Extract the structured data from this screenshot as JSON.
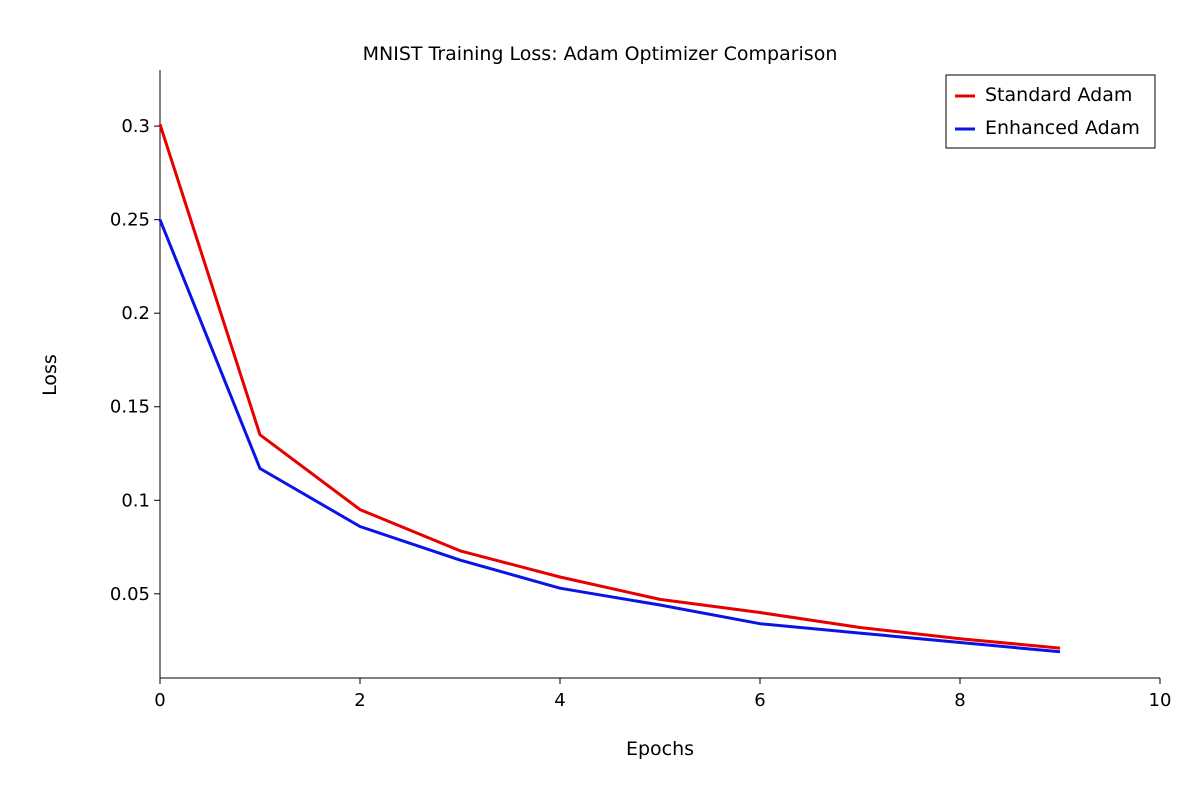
{
  "chart_data": {
    "type": "line",
    "title": "MNIST Training Loss: Adam Optimizer Comparison",
    "xlabel": "Epochs",
    "ylabel": "Loss",
    "xlim": [
      0,
      10
    ],
    "ylim": [
      0.005,
      0.33
    ],
    "x_ticks": [
      0,
      2,
      4,
      6,
      8,
      10
    ],
    "y_ticks": [
      0.05,
      0.1,
      0.15,
      0.2,
      0.25,
      0.3
    ],
    "x_tick_labels": [
      "0",
      "2",
      "4",
      "6",
      "8",
      "10"
    ],
    "y_tick_labels": [
      "0.05",
      "0.1",
      "0.15",
      "0.2",
      "0.25",
      "0.3"
    ],
    "grid": false,
    "legend_position": "top-right",
    "x": [
      0,
      1,
      2,
      3,
      4,
      5,
      6,
      7,
      8,
      9
    ],
    "series": [
      {
        "name": "Standard Adam",
        "color": "#e60000",
        "values": [
          0.301,
          0.135,
          0.095,
          0.073,
          0.059,
          0.047,
          0.04,
          0.032,
          0.026,
          0.021
        ]
      },
      {
        "name": "Enhanced Adam",
        "color": "#0a14e6",
        "values": [
          0.25,
          0.117,
          0.086,
          0.068,
          0.053,
          0.044,
          0.034,
          0.029,
          0.024,
          0.019
        ]
      }
    ]
  }
}
